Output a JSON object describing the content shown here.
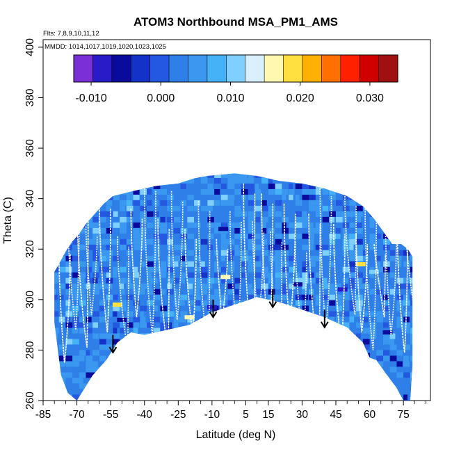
{
  "chart_data": {
    "type": "heatmap",
    "title": "ATOM3 Northbound MSA_PM1_AMS",
    "xlabel": "Latitude (deg N)",
    "ylabel": "Theta (C)",
    "flights_note": "Flts: 7,8,9,10,11,12",
    "dates_note": "MMDD: 1014,1017,1019,1020,1023,1025",
    "xlim": [
      -85,
      87
    ],
    "ylim": [
      260,
      403
    ],
    "x_ticks": [
      -85,
      -70,
      -55,
      -40,
      -25,
      -10,
      5,
      15,
      30,
      45,
      60,
      75
    ],
    "x_tick_labels": [
      "-85",
      "-70",
      "-55",
      "-40",
      "-25",
      "-10",
      "5",
      "15",
      "30",
      "45",
      "60",
      "75"
    ],
    "y_ticks": [
      260,
      280,
      300,
      320,
      340,
      360,
      380,
      400
    ],
    "y_tick_labels": [
      "260",
      "280",
      "300",
      "320",
      "340",
      "360",
      "380",
      "400"
    ],
    "colorbar": {
      "min": -0.0125,
      "max": 0.034,
      "ticks": [
        -0.01,
        0.0,
        0.01,
        0.02,
        0.03
      ],
      "tick_labels": [
        "-0.010",
        "0.000",
        "0.010",
        "0.020",
        "0.030"
      ],
      "colors": [
        "#7b2fd6",
        "#2a1bc8",
        "#0a0a9c",
        "#1432c8",
        "#2458e0",
        "#2f7fe8",
        "#3a98f0",
        "#45b2f8",
        "#7fd0ff",
        "#d8f0ff",
        "#fff8b0",
        "#ffe040",
        "#ffb000",
        "#ff7000",
        "#ff2000",
        "#d00000",
        "#a01010"
      ]
    },
    "domain_upper_boundary": [
      [
        -80,
        311
      ],
      [
        -78,
        314
      ],
      [
        -75,
        319
      ],
      [
        -72,
        323
      ],
      [
        -69,
        326
      ],
      [
        -66,
        330
      ],
      [
        -62,
        334
      ],
      [
        -58,
        338
      ],
      [
        -54,
        341
      ],
      [
        -45,
        343
      ],
      [
        -35,
        345
      ],
      [
        -25,
        346
      ],
      [
        -18,
        348
      ],
      [
        -12,
        349
      ],
      [
        0,
        350
      ],
      [
        10,
        349
      ],
      [
        20,
        347
      ],
      [
        30,
        346
      ],
      [
        40,
        344
      ],
      [
        50,
        341
      ],
      [
        57,
        337
      ],
      [
        62,
        332
      ],
      [
        66,
        327
      ],
      [
        70,
        322
      ],
      [
        74,
        322
      ],
      [
        77,
        320
      ],
      [
        79,
        317
      ]
    ],
    "domain_lower_boundary": [
      [
        -80,
        291
      ],
      [
        -77,
        270
      ],
      [
        -74,
        263
      ],
      [
        -70,
        260
      ],
      [
        -63,
        270
      ],
      [
        -57,
        276
      ],
      [
        -52,
        283
      ],
      [
        -46,
        287
      ],
      [
        -40,
        286
      ],
      [
        -30,
        288
      ],
      [
        -20,
        290
      ],
      [
        -10,
        295
      ],
      [
        0,
        298
      ],
      [
        10,
        301
      ],
      [
        20,
        299
      ],
      [
        30,
        296
      ],
      [
        40,
        293
      ],
      [
        50,
        289
      ],
      [
        57,
        283
      ],
      [
        60,
        277
      ],
      [
        63,
        276
      ],
      [
        67,
        271
      ],
      [
        72,
        265
      ],
      [
        75,
        260
      ],
      [
        78,
        260
      ],
      [
        79,
        274
      ]
    ],
    "annotations": [
      {
        "type": "arrow",
        "label": "downward arrow",
        "lat": -54,
        "theta_from": 286,
        "theta_to": 279
      },
      {
        "type": "arrow",
        "label": "downward arrow",
        "lat": -9.5,
        "theta_from": 300,
        "theta_to": 293
      },
      {
        "type": "arrow",
        "label": "downward arrow",
        "lat": 17,
        "theta_from": 304,
        "theta_to": 297
      },
      {
        "type": "arrow",
        "label": "downward arrow",
        "lat": 40,
        "theta_from": 296,
        "theta_to": 289
      }
    ],
    "flight_profiles_lat": [
      -78,
      -74,
      -70,
      -66,
      -60,
      -52,
      -46,
      -40,
      -34,
      -28,
      -22,
      -16,
      -8,
      -2,
      4,
      8,
      12,
      16,
      22,
      27,
      33,
      38,
      44,
      49,
      54,
      58,
      62,
      67,
      72,
      76
    ],
    "hotspots": [
      {
        "lat": -52,
        "theta": 298,
        "value": 0.019
      },
      {
        "lat": -20,
        "theta": 293,
        "value": 0.017
      },
      {
        "lat": -4,
        "theta": 309,
        "value": 0.016
      },
      {
        "lat": -10,
        "theta": 297,
        "value": -0.008
      },
      {
        "lat": -50,
        "theta": 292,
        "value": -0.006
      },
      {
        "lat": 28,
        "theta": 306,
        "value": -0.007
      },
      {
        "lat": 48,
        "theta": 304,
        "value": -0.008
      },
      {
        "lat": 68,
        "theta": 287,
        "value": -0.006
      },
      {
        "lat": 58,
        "theta": 278,
        "value": -0.006
      },
      {
        "lat": -5,
        "theta": 328,
        "value": -0.007
      },
      {
        "lat": 56,
        "theta": 314,
        "value": 0.02
      },
      {
        "lat": -15,
        "theta": 325,
        "value": 0.003
      },
      {
        "lat": 62,
        "theta": 311,
        "value": 0.012
      }
    ]
  }
}
